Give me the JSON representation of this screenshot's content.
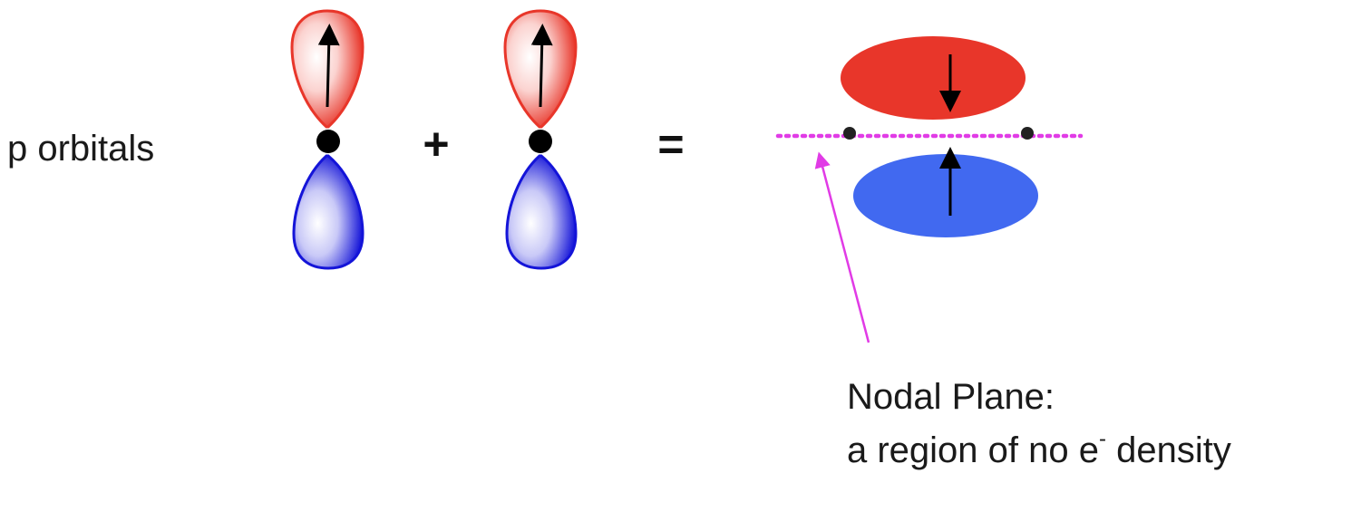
{
  "labels": {
    "p_orbitals": "p orbitals",
    "plus": "+",
    "equals": "=",
    "nodal_plane_title": "Nodal Plane:",
    "nodal_plane_desc_prefix": "a region of no e",
    "nodal_plane_desc_sup": "-",
    "nodal_plane_desc_suffix": " density"
  },
  "colors": {
    "positive_lobe": "#e8362a",
    "negative_lobe": "#1414d8",
    "pi_top_lobe": "#e8362a",
    "pi_bottom_lobe": "#4169f0",
    "nodal_plane": "#e13be6",
    "nucleus": "#000000",
    "text": "#1a1a1a"
  },
  "icons": [
    "orbital-lobe",
    "electron-spin-arrow",
    "nucleus-dot",
    "nodal-plane-line",
    "pointer-arrow"
  ]
}
